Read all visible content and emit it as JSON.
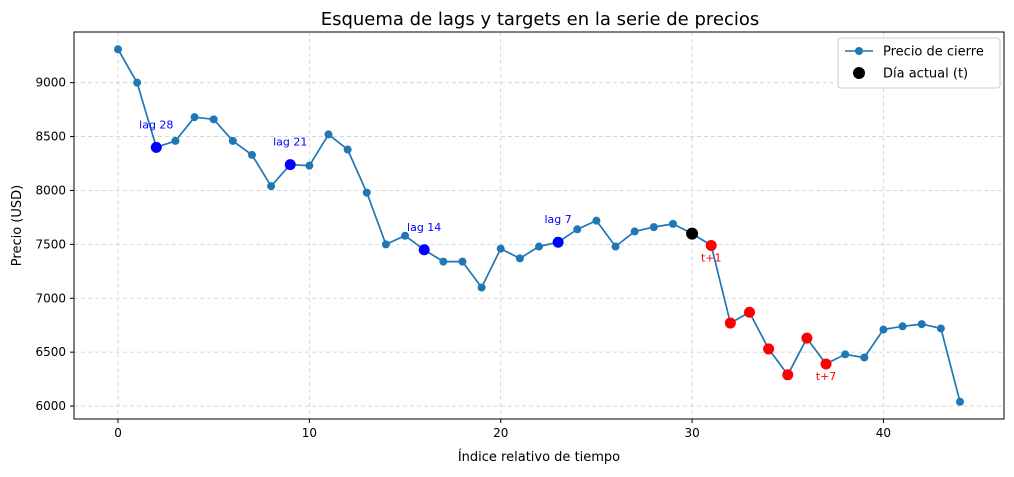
{
  "chart_data": {
    "type": "line",
    "title": "Esquema de lags y targets en la serie de precios",
    "xlabel": "Índice relativo de tiempo",
    "ylabel": "Precio (USD)",
    "xlim": [
      -2.3,
      46.3
    ],
    "ylim": [
      5880,
      9470
    ],
    "xticks": [
      0,
      10,
      20,
      30,
      40
    ],
    "yticks": [
      6000,
      6500,
      7000,
      7500,
      8000,
      8500,
      9000
    ],
    "grid": true,
    "legend_position": "top-right",
    "colors": {
      "line": "#1f77b4",
      "lag": "#0000ff",
      "current": "#000000",
      "target": "#ff0000",
      "grid": "#b0b0b0"
    },
    "series": [
      {
        "name": "Precio de cierre",
        "x": [
          0,
          1,
          2,
          3,
          4,
          5,
          6,
          7,
          8,
          9,
          10,
          11,
          12,
          13,
          14,
          15,
          16,
          17,
          18,
          19,
          20,
          21,
          22,
          23,
          24,
          25,
          26,
          27,
          28,
          29,
          30,
          31,
          32,
          33,
          34,
          35,
          36,
          37,
          38,
          39,
          40,
          41,
          42,
          43,
          44
        ],
        "y": [
          9310,
          9000,
          8400,
          8460,
          8680,
          8660,
          8460,
          8330,
          8040,
          8240,
          8230,
          8520,
          8380,
          7980,
          7500,
          7580,
          7450,
          7340,
          7340,
          7100,
          7460,
          7370,
          7480,
          7520,
          7640,
          7720,
          7480,
          7620,
          7660,
          7690,
          7600,
          7490,
          6770,
          6870,
          6530,
          6290,
          6630,
          6390,
          6480,
          6450,
          6710,
          6740,
          6760,
          6720,
          6040
        ]
      }
    ],
    "current": {
      "name": "Día actual (t)",
      "x": 30,
      "y": 7600
    },
    "lags": [
      {
        "x": 2,
        "y": 8400,
        "label": "lag 28"
      },
      {
        "x": 9,
        "y": 8240,
        "label": "lag 21"
      },
      {
        "x": 16,
        "y": 7450,
        "label": "lag 14"
      },
      {
        "x": 23,
        "y": 7520,
        "label": "lag 7"
      }
    ],
    "targets": [
      {
        "x": 31,
        "y": 7490,
        "label": "t+1"
      },
      {
        "x": 32,
        "y": 6770,
        "label": ""
      },
      {
        "x": 33,
        "y": 6870,
        "label": ""
      },
      {
        "x": 34,
        "y": 6530,
        "label": ""
      },
      {
        "x": 35,
        "y": 6290,
        "label": ""
      },
      {
        "x": 36,
        "y": 6630,
        "label": ""
      },
      {
        "x": 37,
        "y": 6390,
        "label": "t+7"
      }
    ]
  }
}
